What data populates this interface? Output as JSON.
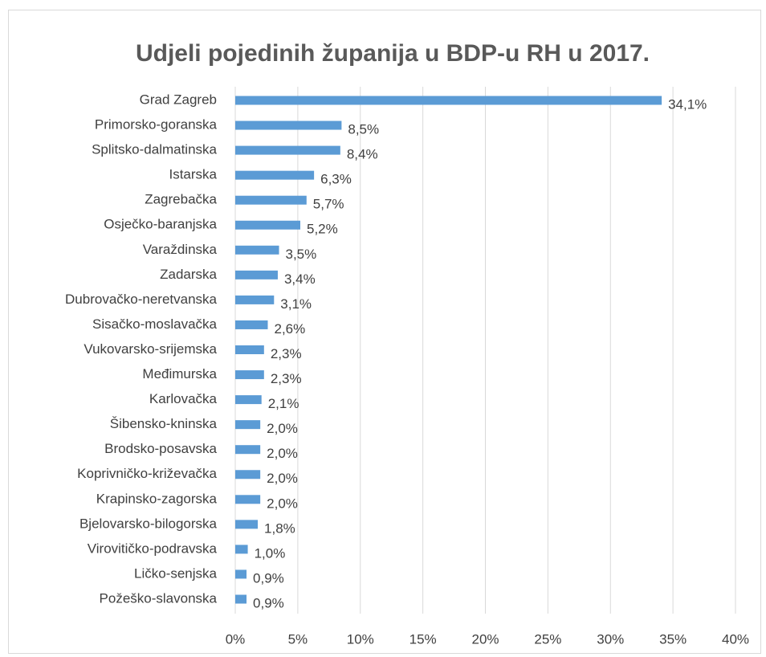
{
  "chart_data": {
    "type": "bar",
    "orientation": "horizontal",
    "title": "Udjeli pojedinih županija u BDP-u RH u 2017.",
    "categories": [
      "Grad Zagreb",
      "Primorsko-goranska",
      "Splitsko-dalmatinska",
      "Istarska",
      "Zagrebačka",
      "Osječko-baranjska",
      "Varaždinska",
      "Zadarska",
      "Dubrovačko-neretvanska",
      "Sisačko-moslavačka",
      "Vukovarsko-srijemska",
      "Međimurska",
      "Karlovačka",
      "Šibensko-kninska",
      "Brodsko-posavska",
      "Koprivničko-križevačka",
      "Krapinsko-zagorska",
      "Bjelovarsko-bilogorska",
      "Virovitičko-podravska",
      "Ličko-senjska",
      "Požeško-slavonska"
    ],
    "values": [
      34.1,
      8.5,
      8.4,
      6.3,
      5.7,
      5.2,
      3.5,
      3.4,
      3.1,
      2.6,
      2.3,
      2.3,
      2.1,
      2.0,
      2.0,
      2.0,
      2.0,
      1.8,
      1.0,
      0.9,
      0.9
    ],
    "value_labels": [
      "34,1%",
      "8,5%",
      "8,4%",
      "6,3%",
      "5,7%",
      "5,2%",
      "3,5%",
      "3,4%",
      "3,1%",
      "2,6%",
      "2,3%",
      "2,3%",
      "2,1%",
      "2,0%",
      "2,0%",
      "2,0%",
      "2,0%",
      "1,8%",
      "1,0%",
      "0,9%",
      "0,9%"
    ],
    "color": "#5b9bd5",
    "xlim": [
      0,
      40
    ],
    "xticks": [
      {
        "value": 0,
        "label": "0%"
      },
      {
        "value": 5,
        "label": "5%"
      },
      {
        "value": 10,
        "label": "10%"
      },
      {
        "value": 15,
        "label": "15%"
      },
      {
        "value": 20,
        "label": "20%"
      },
      {
        "value": 25,
        "label": "25%"
      },
      {
        "value": 30,
        "label": "30%"
      },
      {
        "value": 35,
        "label": "35%"
      },
      {
        "value": 40,
        "label": "40%"
      }
    ],
    "grid": true
  }
}
